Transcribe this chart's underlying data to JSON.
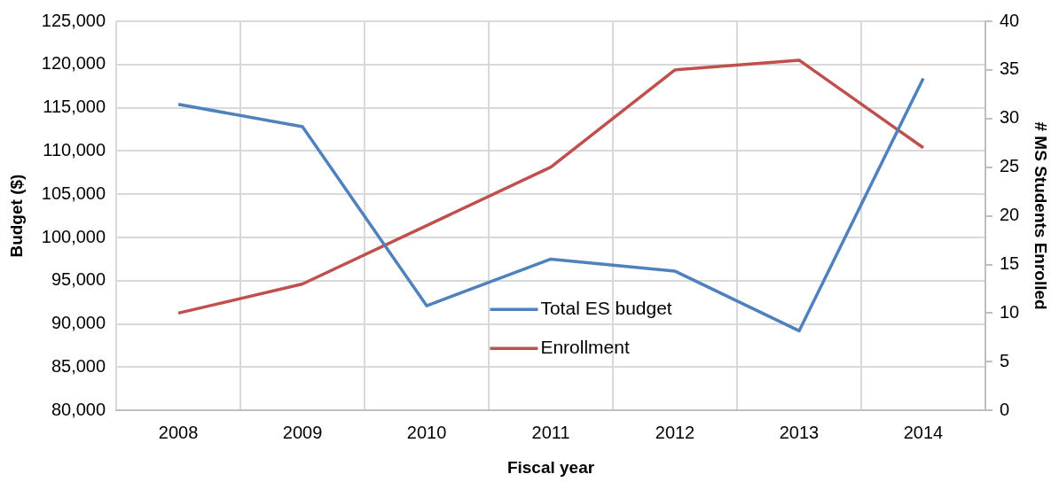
{
  "chart_data": {
    "type": "line",
    "xlabel": "Fiscal year",
    "ylabel": "Budget ($)",
    "y2label": "# MS Students Enrolled",
    "categories": [
      "2008",
      "2009",
      "2010",
      "2011",
      "2012",
      "2013",
      "2014"
    ],
    "series": [
      {
        "name": "Total ES budget",
        "color": "#4f81bd",
        "values": [
          115400,
          112800,
          92100,
          97500,
          96100,
          89200,
          118400
        ]
      },
      {
        "name": "Enrollment",
        "color": "#c0504d",
        "axis": "y2",
        "values": [
          10,
          13,
          19,
          25,
          35,
          36,
          27
        ]
      }
    ],
    "ylim": [
      80000,
      125000
    ],
    "yticks": [
      {
        "value": 80000,
        "label": "80,000"
      },
      {
        "value": 85000,
        "label": "85,000"
      },
      {
        "value": 90000,
        "label": "90,000"
      },
      {
        "value": 95000,
        "label": "95,000"
      },
      {
        "value": 100000,
        "label": "100,000"
      },
      {
        "value": 105000,
        "label": "105,000"
      },
      {
        "value": 110000,
        "label": "110,000"
      },
      {
        "value": 115000,
        "label": "115,000"
      },
      {
        "value": 120000,
        "label": "120,000"
      },
      {
        "value": 125000,
        "label": "125,000"
      }
    ],
    "y2lim": [
      0,
      40
    ],
    "y2ticks": [
      0,
      5,
      10,
      15,
      20,
      25,
      30,
      35,
      40
    ],
    "grid": true,
    "legend": "bottom",
    "marker": "none",
    "line_style": "solid"
  }
}
